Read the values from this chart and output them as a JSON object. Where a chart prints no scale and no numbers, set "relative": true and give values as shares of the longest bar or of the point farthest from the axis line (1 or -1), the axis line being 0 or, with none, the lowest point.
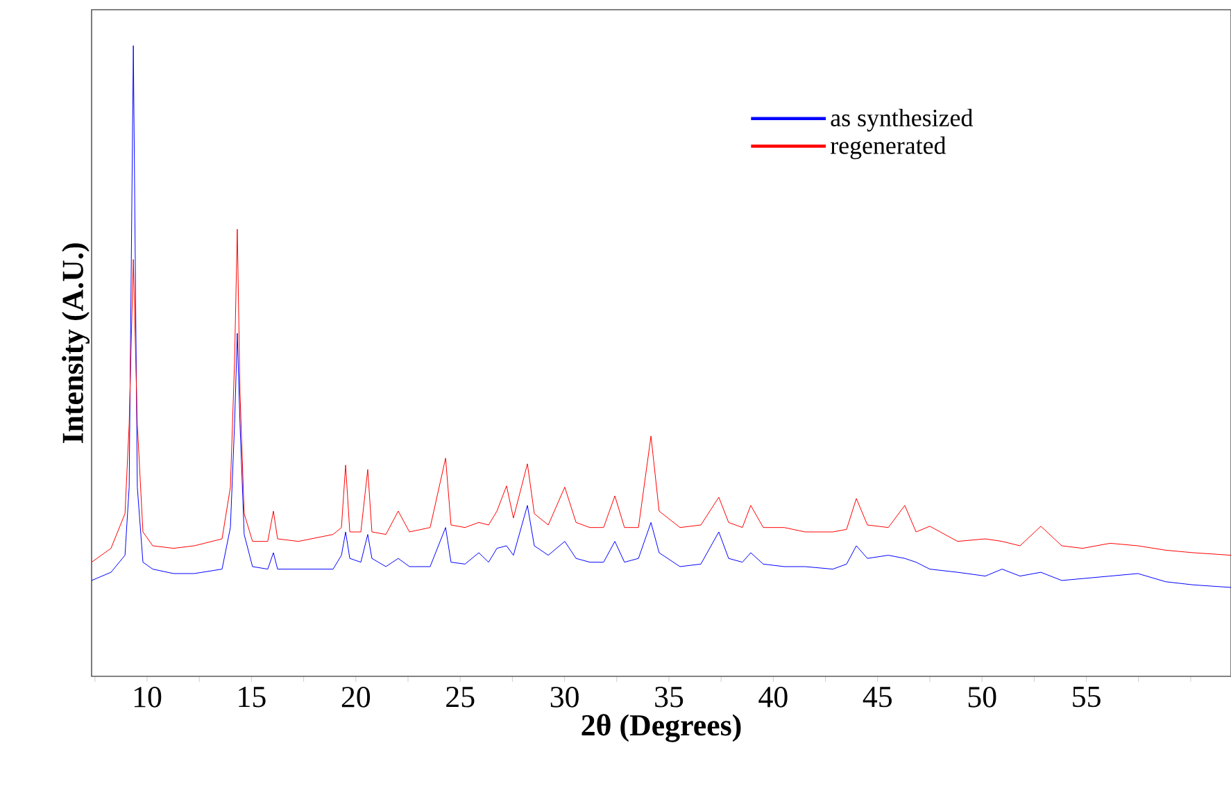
{
  "chart_data": {
    "type": "line",
    "xlabel": "2θ (Degrees)",
    "ylabel": "Intensity (A.U.)",
    "relative": true,
    "legend": "top right",
    "grid": false,
    "marker": "none",
    "line_style": "solid",
    "xlim": [
      7.34,
      61.93
    ],
    "xticks": [
      {
        "value": 7.5,
        "label": null
      },
      10,
      {
        "value": 12.5,
        "label": null
      },
      15,
      {
        "value": 17.5,
        "label": null
      },
      20,
      {
        "value": 22.5,
        "label": null
      },
      25,
      {
        "value": 27.5,
        "label": null
      },
      30,
      {
        "value": 32.5,
        "label": null
      },
      35,
      {
        "value": 37.5,
        "label": null
      },
      40,
      {
        "value": 42.5,
        "label": null
      },
      45,
      {
        "value": 47.5,
        "label": null
      },
      50,
      {
        "value": 52.5,
        "label": null
      },
      55,
      {
        "value": 57.5,
        "label": null
      },
      {
        "value": 60,
        "label": null
      }
    ],
    "x": [
      7.34,
      8.27,
      8.94,
      9.14,
      9.34,
      9.53,
      9.8,
      10.27,
      11.26,
      12.26,
      13.59,
      13.99,
      14.19,
      14.32,
      14.45,
      14.65,
      15.05,
      15.78,
      16.05,
      16.25,
      17.25,
      18.91,
      19.31,
      19.51,
      19.71,
      20.24,
      20.57,
      20.77,
      21.44,
      22.03,
      22.57,
      23.56,
      24.3,
      24.56,
      25.23,
      25.89,
      26.36,
      26.76,
      27.22,
      27.55,
      28.22,
      28.55,
      29.22,
      30.01,
      30.55,
      31.21,
      31.87,
      32.41,
      32.87,
      33.54,
      34.14,
      34.53,
      35.53,
      36.53,
      37.39,
      37.86,
      38.52,
      38.92,
      39.52,
      40.52,
      41.52,
      42.85,
      43.51,
      43.98,
      44.51,
      45.51,
      46.3,
      46.84,
      47.5,
      48.83,
      50.16,
      50.96,
      51.82,
      52.82,
      53.82,
      54.81,
      56.14,
      57.47,
      58.8,
      60.13,
      61.93
    ],
    "series": [
      {
        "name": "as synthesized",
        "color": "#0000ff",
        "values": [
          0.152,
          0.165,
          0.192,
          0.3,
          1.0,
          0.3,
          0.181,
          0.17,
          0.163,
          0.163,
          0.17,
          0.236,
          0.4,
          0.544,
          0.4,
          0.225,
          0.174,
          0.17,
          0.196,
          0.17,
          0.17,
          0.17,
          0.192,
          0.229,
          0.187,
          0.181,
          0.225,
          0.187,
          0.174,
          0.187,
          0.174,
          0.174,
          0.236,
          0.181,
          0.178,
          0.196,
          0.181,
          0.203,
          0.207,
          0.192,
          0.271,
          0.207,
          0.192,
          0.214,
          0.187,
          0.181,
          0.181,
          0.214,
          0.181,
          0.187,
          0.244,
          0.196,
          0.174,
          0.178,
          0.229,
          0.187,
          0.181,
          0.196,
          0.178,
          0.174,
          0.174,
          0.17,
          0.178,
          0.207,
          0.187,
          0.192,
          0.187,
          0.181,
          0.17,
          0.165,
          0.159,
          0.17,
          0.159,
          0.165,
          0.152,
          0.155,
          0.159,
          0.163,
          0.15,
          0.145,
          0.141
        ]
      },
      {
        "name": "regenerated",
        "color": "#ff0000",
        "values": [
          0.181,
          0.203,
          0.258,
          0.4,
          0.661,
          0.4,
          0.229,
          0.207,
          0.203,
          0.207,
          0.218,
          0.3,
          0.5,
          0.709,
          0.45,
          0.258,
          0.214,
          0.214,
          0.262,
          0.218,
          0.214,
          0.225,
          0.236,
          0.335,
          0.229,
          0.229,
          0.328,
          0.229,
          0.225,
          0.262,
          0.229,
          0.236,
          0.346,
          0.24,
          0.236,
          0.244,
          0.24,
          0.262,
          0.302,
          0.251,
          0.337,
          0.258,
          0.24,
          0.3,
          0.244,
          0.236,
          0.236,
          0.286,
          0.236,
          0.236,
          0.381,
          0.262,
          0.236,
          0.24,
          0.284,
          0.244,
          0.236,
          0.271,
          0.236,
          0.236,
          0.229,
          0.229,
          0.233,
          0.282,
          0.24,
          0.236,
          0.271,
          0.229,
          0.238,
          0.214,
          0.218,
          0.214,
          0.207,
          0.238,
          0.207,
          0.203,
          0.211,
          0.207,
          0.2,
          0.196,
          0.192
        ]
      }
    ]
  }
}
